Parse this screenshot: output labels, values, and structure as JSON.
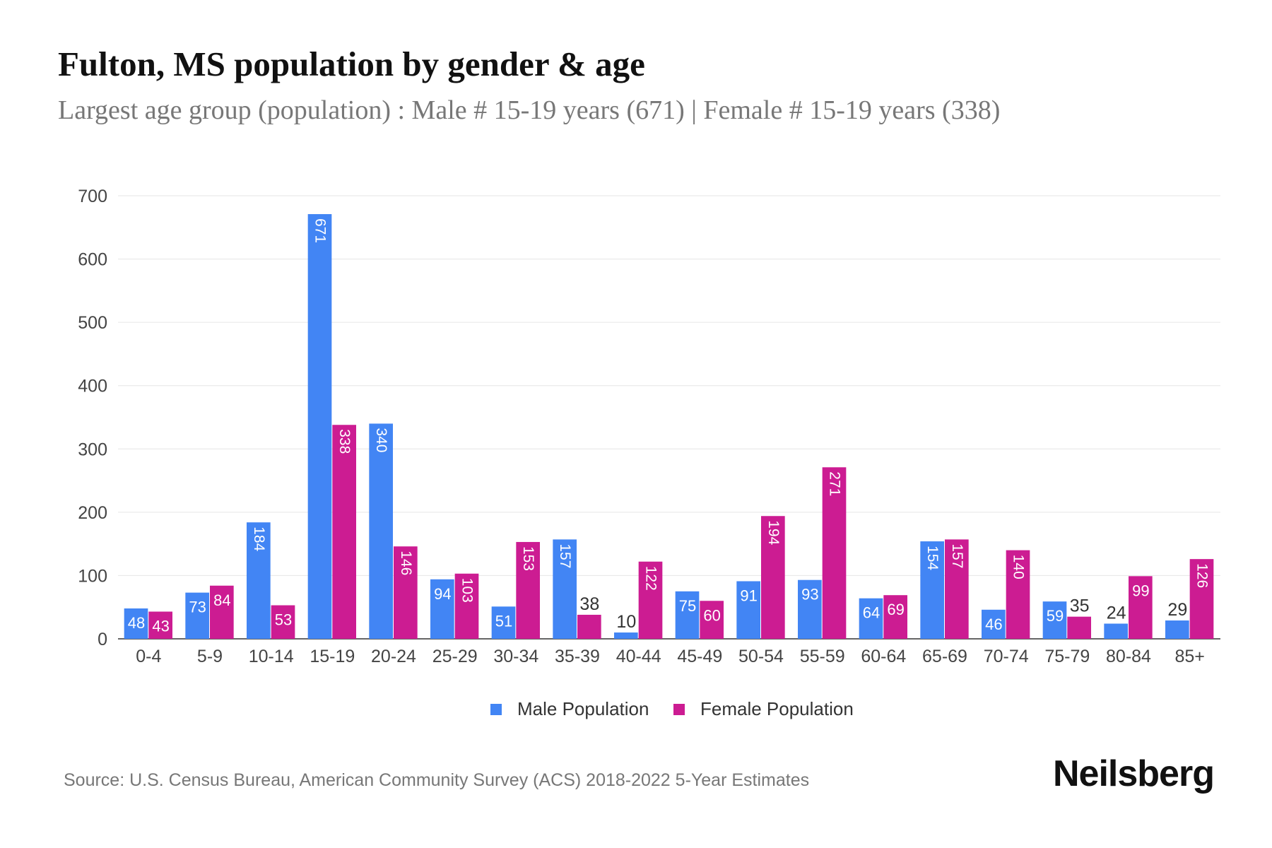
{
  "title": "Fulton, MS population by gender & age",
  "subtitle": "Largest age group (population) : Male # 15-19 years (671) | Female # 15-19 years (338)",
  "source": "Source: U.S. Census Bureau, American Community Survey (ACS) 2018-2022 5-Year Estimates",
  "logo": "Neilsberg",
  "chart_data": {
    "type": "bar",
    "categories": [
      "0-4",
      "5-9",
      "10-14",
      "15-19",
      "20-24",
      "25-29",
      "30-34",
      "35-39",
      "40-44",
      "45-49",
      "50-54",
      "55-59",
      "60-64",
      "65-69",
      "70-74",
      "75-79",
      "80-84",
      "85+"
    ],
    "series": [
      {
        "name": "Male Population",
        "color": "#4285F4",
        "values": [
          48,
          73,
          184,
          671,
          340,
          94,
          51,
          157,
          10,
          75,
          91,
          93,
          64,
          154,
          46,
          59,
          24,
          29
        ]
      },
      {
        "name": "Female Population",
        "color": "#CC1C92",
        "values": [
          43,
          84,
          53,
          338,
          146,
          103,
          153,
          38,
          122,
          60,
          194,
          271,
          69,
          157,
          140,
          35,
          99,
          126
        ]
      }
    ],
    "ylim": [
      0,
      700
    ],
    "yticks": [
      0,
      100,
      200,
      300,
      400,
      500,
      600,
      700
    ],
    "grid": true,
    "legend": "bottom",
    "xlabel": "",
    "ylabel": ""
  }
}
